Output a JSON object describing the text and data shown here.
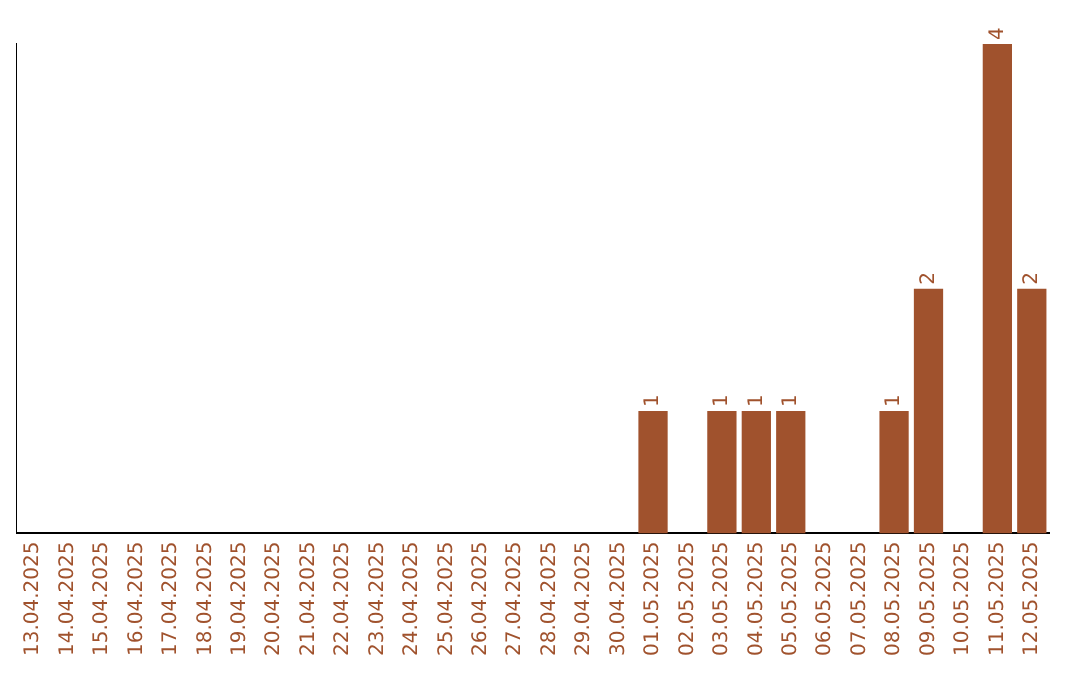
{
  "chart_data": {
    "type": "bar",
    "categories": [
      "13.04.2025",
      "14.04.2025",
      "15.04.2025",
      "16.04.2025",
      "17.04.2025",
      "18.04.2025",
      "19.04.2025",
      "20.04.2025",
      "21.04.2025",
      "22.04.2025",
      "23.04.2025",
      "24.04.2025",
      "25.04.2025",
      "26.04.2025",
      "27.04.2025",
      "28.04.2025",
      "29.04.2025",
      "30.04.2025",
      "01.05.2025",
      "02.05.2025",
      "03.05.2025",
      "04.05.2025",
      "05.05.2025",
      "06.05.2025",
      "07.05.2025",
      "08.05.2025",
      "09.05.2025",
      "10.05.2025",
      "11.05.2025",
      "12.05.2025"
    ],
    "values": [
      null,
      null,
      null,
      null,
      null,
      null,
      null,
      null,
      null,
      null,
      null,
      null,
      null,
      null,
      null,
      null,
      null,
      null,
      1,
      null,
      1,
      1,
      1,
      null,
      null,
      1,
      2,
      null,
      4,
      2
    ],
    "data_labels": true,
    "color": "#a0522d",
    "grid": false,
    "legend": false,
    "tick_labels": "x"
  }
}
